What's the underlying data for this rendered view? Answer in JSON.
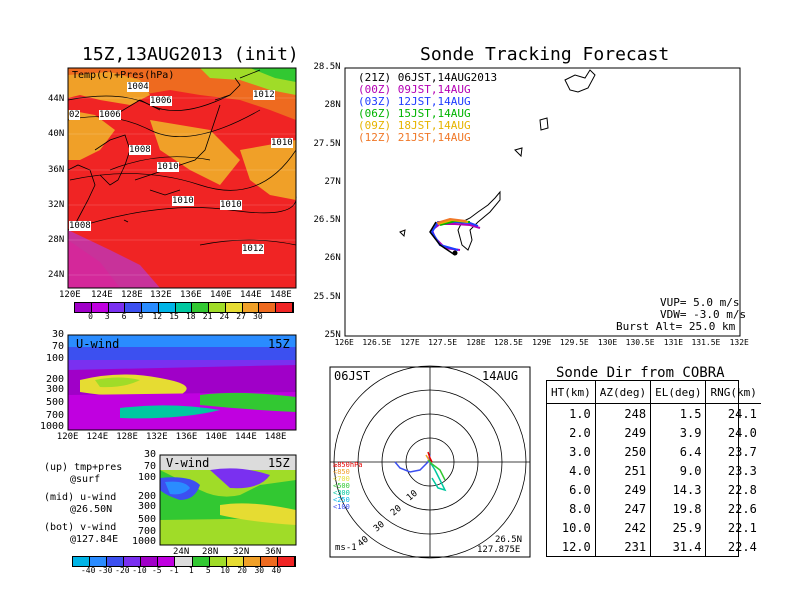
{
  "left_title": "15Z,13AUG2013 (init)",
  "temp_map": {
    "label": "Temp(C)+Pres(hPa)",
    "lat_ticks": [
      "44N",
      "40N",
      "36N",
      "32N",
      "28N",
      "24N"
    ],
    "lon_ticks": [
      "120E",
      "124E",
      "128E",
      "132E",
      "136E",
      "140E",
      "144E",
      "148E"
    ],
    "pressure_labels": [
      "1004",
      "1006",
      "1006",
      "1008",
      "1010",
      "1010",
      "1010",
      "1012",
      "1010",
      "1012",
      "1008",
      "02"
    ],
    "colorbar_ticks": [
      "0",
      "3",
      "6",
      "9",
      "12",
      "15",
      "18",
      "21",
      "24",
      "27",
      "30"
    ],
    "colorbar_colors": [
      "#a000c8",
      "#c000e0",
      "#7a30f0",
      "#3c50f0",
      "#2a8cff",
      "#00b4e6",
      "#00c8a0",
      "#32c832",
      "#a0dc28",
      "#e6dc32",
      "#f0a028",
      "#ee6a1f",
      "#f02424"
    ]
  },
  "u_wind": {
    "label": "U-wind",
    "time": "15Z",
    "y_ticks": [
      "30",
      "70",
      "100",
      "200",
      "300",
      "500",
      "700",
      "1000"
    ],
    "x_ticks": [
      "120E",
      "124E",
      "128E",
      "132E",
      "136E",
      "140E",
      "144E",
      "148E"
    ]
  },
  "v_wind": {
    "label": "V-wind",
    "time": "15Z",
    "y_ticks": [
      "30",
      "70",
      "100",
      "200",
      "300",
      "500",
      "700",
      "1000"
    ],
    "x_ticks": [
      "24N",
      "28N",
      "32N",
      "36N"
    ]
  },
  "legend_notes": [
    "(up) tmp+pres",
    "@surf",
    "(mid) u-wind",
    "@26.50N",
    "(bot) v-wind",
    "@127.84E"
  ],
  "wind_colorbar_ticks": [
    "-40",
    "-30",
    "-20",
    "-10",
    "-5",
    "-1",
    "1",
    "5",
    "10",
    "20",
    "30",
    "40"
  ],
  "wind_colorbar_colors": [
    "#00b4e6",
    "#2a8cff",
    "#3c50f0",
    "#7a30f0",
    "#a000c8",
    "#c000e0",
    "#dcdcdc",
    "#32c832",
    "#a0dc28",
    "#e6dc32",
    "#f0a028",
    "#ee6a1f",
    "#f02424"
  ],
  "right_title": "Sonde Tracking Forecast",
  "track_map": {
    "lat_ticks": [
      "28.5N",
      "28N",
      "27.5N",
      "27N",
      "26.5N",
      "26N",
      "25.5N",
      "25N"
    ],
    "lon_ticks": [
      "126E",
      "126.5E",
      "127E",
      "127.5E",
      "128E",
      "128.5E",
      "129E",
      "129.5E",
      "130E",
      "130.5E",
      "131E",
      "131.5E",
      "132E"
    ],
    "legend": [
      {
        "code": "(21Z)",
        "text": "06JST,14AUG2013",
        "color": "#000000"
      },
      {
        "code": "(00Z)",
        "text": "09JST,14AUG",
        "color": "#b400b4"
      },
      {
        "code": "(03Z)",
        "text": "12JST,14AUG",
        "color": "#1e3cff"
      },
      {
        "code": "(06Z)",
        "text": "15JST,14AUG",
        "color": "#00b400"
      },
      {
        "code": "(09Z)",
        "text": "18JST,14AUG",
        "color": "#e6b400"
      },
      {
        "code": "(12Z)",
        "text": "21JST,14AUG",
        "color": "#f07828"
      }
    ],
    "params": [
      "VUP= 5.0 m/s",
      "VDW= -3.0 m/s",
      "Burst Alt= 25.0 km"
    ]
  },
  "polar": {
    "top_left": "06JST",
    "top_right": "14AUG",
    "ring_labels": [
      "10",
      "20",
      "30",
      "40"
    ],
    "layer_labels": [
      {
        "text": "≥850hPa",
        "color": "#e60000"
      },
      {
        "text": "<850",
        "color": "#f0a028"
      },
      {
        "text": "<700",
        "color": "#e6dc32"
      },
      {
        "text": "<500",
        "color": "#32c832"
      },
      {
        "text": "<300",
        "color": "#00c8a0"
      },
      {
        "text": "<250",
        "color": "#00b4e6"
      },
      {
        "text": "<100",
        "color": "#3c50f0"
      }
    ],
    "unit": "ms-1",
    "lat": "26.5N",
    "lon": "127.875E"
  },
  "sonde_table": {
    "title": "Sonde Dir from COBRA",
    "headers": [
      "HT(km)",
      "AZ(deg)",
      "EL(deg)",
      "RNG(km)"
    ],
    "rows": [
      [
        "1.0",
        "248",
        "1.5",
        "24.1"
      ],
      [
        "2.0",
        "249",
        "3.9",
        "24.0"
      ],
      [
        "3.0",
        "250",
        "6.4",
        "23.7"
      ],
      [
        "4.0",
        "251",
        "9.0",
        "23.3"
      ],
      [
        "6.0",
        "249",
        "14.3",
        "22.8"
      ],
      [
        "8.0",
        "247",
        "19.8",
        "22.6"
      ],
      [
        "10.0",
        "242",
        "25.9",
        "22.1"
      ],
      [
        "12.0",
        "231",
        "31.4",
        "22.4"
      ]
    ]
  }
}
